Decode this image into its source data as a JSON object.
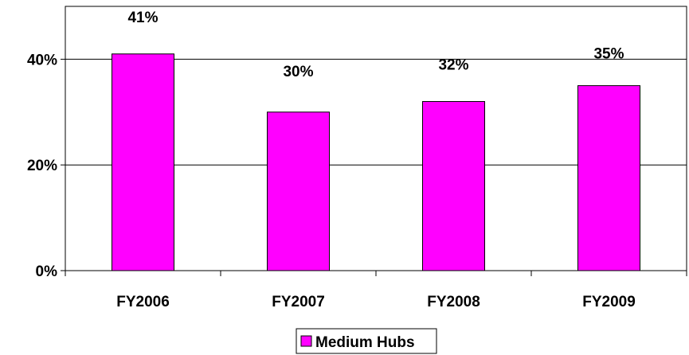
{
  "chart_data": {
    "type": "bar",
    "categories": [
      "FY2006",
      "FY2007",
      "FY2008",
      "FY2009"
    ],
    "series": [
      {
        "name": "Medium Hubs",
        "values": [
          41,
          30,
          32,
          35
        ],
        "color": "#FF00FF"
      }
    ],
    "data_labels": [
      "41%",
      "30%",
      "32%",
      "35%"
    ],
    "y_ticks": [
      {
        "value": 0,
        "label": "0%"
      },
      {
        "value": 20,
        "label": "20%"
      },
      {
        "value": 40,
        "label": "40%"
      }
    ],
    "ylim": [
      0,
      50
    ],
    "grid": true,
    "legend_position": "bottom",
    "title": "",
    "xlabel": "",
    "ylabel": ""
  }
}
